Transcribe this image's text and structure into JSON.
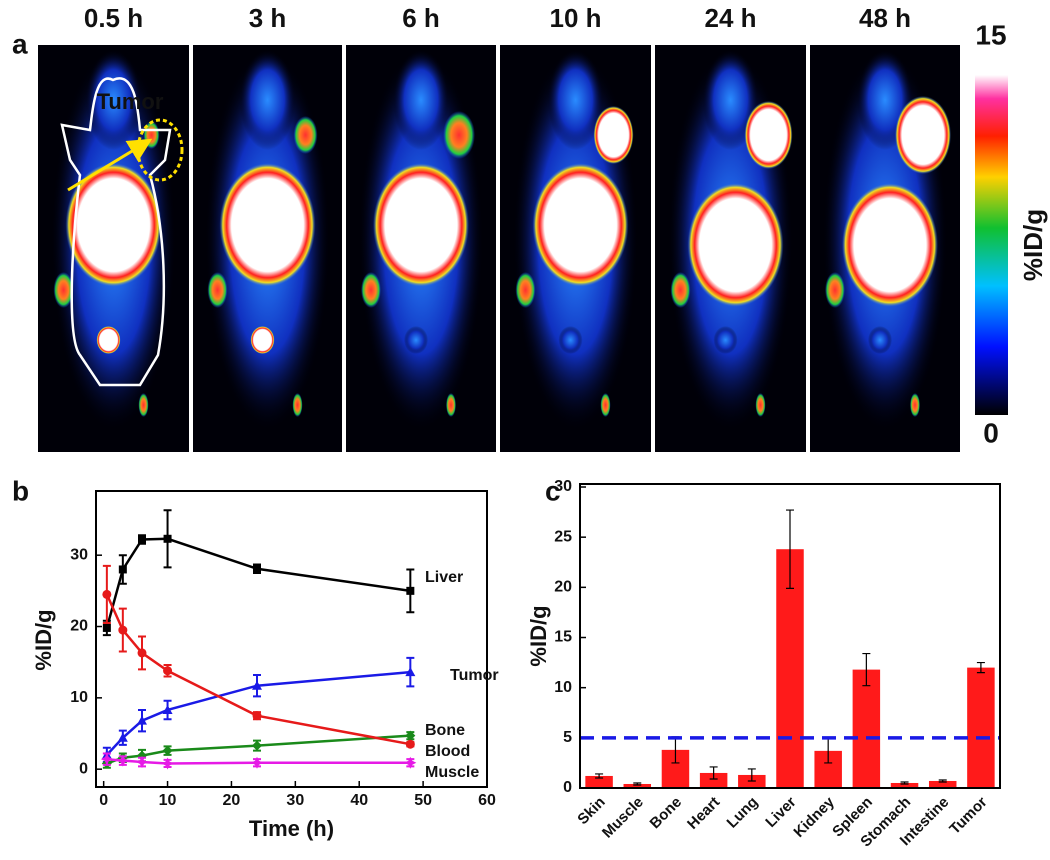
{
  "chart_data": [
    {
      "type": "image",
      "panel": "a",
      "titles": [
        "0.5 h",
        "3 h",
        "6 h",
        "10 h",
        "24 h",
        "48 h"
      ],
      "annotation": "Tumor",
      "colorbar_label": "%ID/g",
      "colorbar_ticks": [
        0,
        15
      ]
    },
    {
      "type": "line",
      "panel": "b",
      "xlabel": "Time (h)",
      "ylabel": "%ID/g",
      "x": [
        0.5,
        3,
        6,
        10,
        24,
        48
      ],
      "xlim": [
        -1.2,
        60
      ],
      "xticks": [
        0,
        10,
        20,
        30,
        40,
        50,
        60
      ],
      "ylim": [
        -2.5,
        39
      ],
      "yticks": [
        0,
        10,
        20,
        30
      ],
      "series": [
        {
          "name": "Liver",
          "color": "#000000",
          "marker": "square",
          "values": [
            19.8,
            28,
            32.2,
            32.3,
            28.1,
            25
          ],
          "errors": [
            1,
            2,
            0.6,
            4,
            0.6,
            3
          ]
        },
        {
          "name": "Tumor",
          "color": "#1a1ae6",
          "marker": "triangle",
          "values": [
            2,
            4.4,
            6.8,
            8.3,
            11.7,
            13.6
          ],
          "errors": [
            1,
            1,
            1.5,
            1.3,
            1.5,
            2
          ]
        },
        {
          "name": "Bone",
          "color": "#1a8a1a",
          "marker": "diamond",
          "values": [
            0.8,
            1.6,
            1.9,
            2.6,
            3.3,
            4.7
          ],
          "errors": [
            0.6,
            0.6,
            0.8,
            0.6,
            0.7,
            0.5
          ]
        },
        {
          "name": "Blood",
          "color": "#e61a1a",
          "marker": "circle",
          "values": [
            24.5,
            19.5,
            16.3,
            13.8,
            7.5,
            3.5
          ],
          "errors": [
            4,
            3,
            2.3,
            0.8,
            0.5,
            0.3
          ]
        },
        {
          "name": "Muscle",
          "color": "#e61ae6",
          "marker": "star",
          "values": [
            1.4,
            1.2,
            1,
            0.8,
            0.9,
            0.9
          ],
          "errors": [
            0.8,
            0.6,
            0.6,
            0.5,
            0.5,
            0.5
          ]
        }
      ]
    },
    {
      "type": "bar",
      "panel": "c",
      "ylabel": "%ID/g",
      "categories": [
        "Skin",
        "Muscle",
        "Bone",
        "Heart",
        "Lung",
        "Liver",
        "Kidney",
        "Spleen",
        "Stomach",
        "Intestine",
        "Tumor"
      ],
      "values": [
        1.2,
        0.4,
        3.8,
        1.5,
        1.3,
        23.8,
        3.7,
        11.8,
        0.5,
        0.7,
        12.0
      ],
      "errors": [
        0.2,
        0.1,
        1.3,
        0.6,
        0.6,
        3.9,
        1.2,
        1.6,
        0.1,
        0.1,
        0.5
      ],
      "color": "#ff1a1a",
      "ylim": [
        0,
        30.3
      ],
      "yticks": [
        0,
        5,
        10,
        15,
        20,
        25,
        30
      ],
      "reference_line": {
        "value": 5,
        "color": "#1a1ae6"
      }
    }
  ]
}
